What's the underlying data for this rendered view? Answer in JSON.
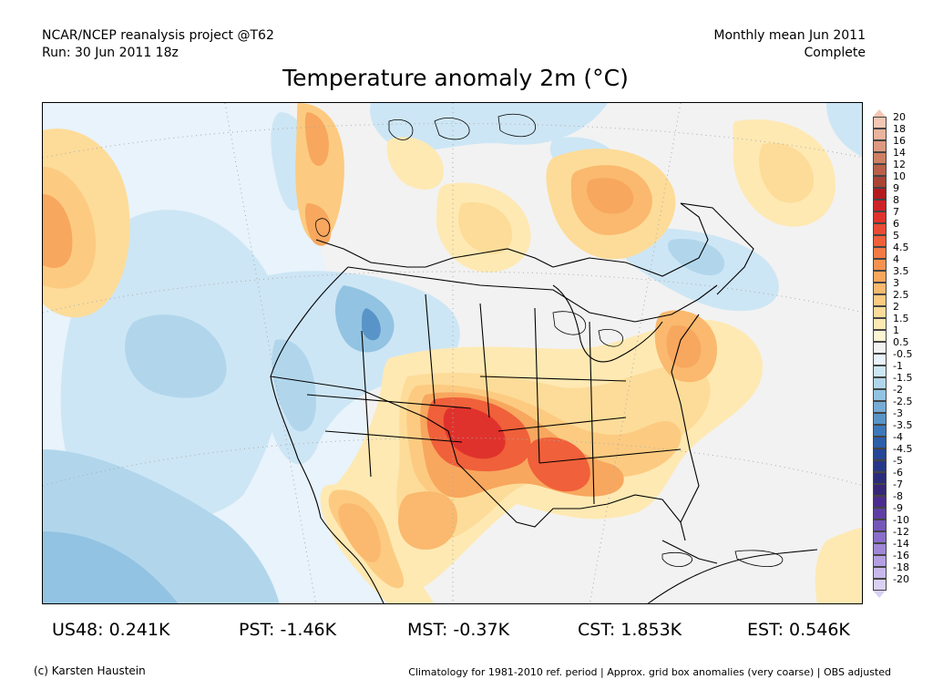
{
  "header": {
    "left_line1": "NCAR/NCEP reanalysis project @T62",
    "left_line2": "Run: 30 Jun 2011 18z",
    "right_line1": "Monthly mean Jun 2011",
    "right_line2": "Complete"
  },
  "title": "Temperature anomaly 2m (°C)",
  "colorbar": {
    "labels": [
      "20",
      "18",
      "16",
      "14",
      "12",
      "10",
      "9",
      "8",
      "7",
      "6",
      "5",
      "4.5",
      "4",
      "3.5",
      "3",
      "2.5",
      "2",
      "1.5",
      "1",
      "0.5",
      "-0.5",
      "-1",
      "-1.5",
      "-2",
      "-2.5",
      "-3",
      "-3.5",
      "-4",
      "-4.5",
      "-5",
      "-6",
      "-7",
      "-8",
      "-9",
      "-10",
      "-12",
      "-14",
      "-16",
      "-18",
      "-20"
    ],
    "colors": [
      "#f4c7b4",
      "#eab39d",
      "#dd9a80",
      "#cf7f63",
      "#b86049",
      "#a84537",
      "#b31b20",
      "#cc2328",
      "#e0322c",
      "#e94b34",
      "#f0603a",
      "#f37a45",
      "#f6924f",
      "#f8a75e",
      "#fab96e",
      "#fccb81",
      "#fddc99",
      "#fee9b3",
      "#fff4d2",
      "#f2f2f2",
      "#e8f3fb",
      "#cde6f5",
      "#b1d6ec",
      "#93c3e2",
      "#75abd5",
      "#5894c8",
      "#3e78b9",
      "#2c5ea9",
      "#264596",
      "#253887",
      "#2a2c7a",
      "#362678",
      "#4b2b8d",
      "#5f3ea4",
      "#7557ba",
      "#8a6ecb",
      "#9f87d8",
      "#b39fe2",
      "#c6b8ec",
      "#d9d0f4"
    ]
  },
  "stats": [
    {
      "region": "US48",
      "value": "0.241K",
      "text": "US48: 0.241K"
    },
    {
      "region": "PST",
      "value": "-1.46K",
      "text": "PST: -1.46K"
    },
    {
      "region": "MST",
      "value": "-0.37K",
      "text": "MST: -0.37K"
    },
    {
      "region": "CST",
      "value": "1.853K",
      "text": "CST: 1.853K"
    },
    {
      "region": "EST",
      "value": "0.546K",
      "text": "EST: 0.546K"
    }
  ],
  "footer": {
    "left": "(c) Karsten Haustein",
    "right": "Climatology for 1981-2010 ref. period | Approx. grid box anomalies (very coarse) | OBS adjusted"
  }
}
